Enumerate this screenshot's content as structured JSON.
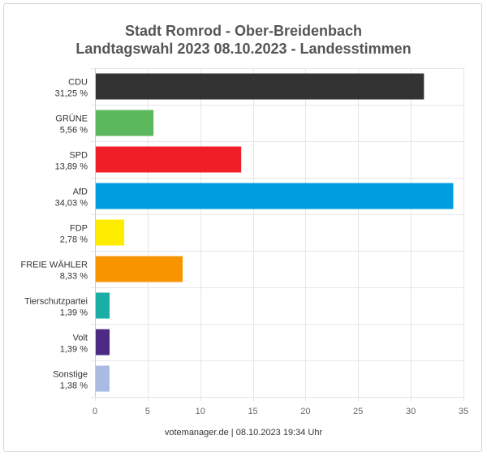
{
  "chart_data": {
    "type": "bar",
    "orientation": "horizontal",
    "title": "Stadt Romrod - Ober-Breidenbach",
    "subtitle": "Landtagswahl 2023 08.10.2023  - Landesstimmen",
    "categories": [
      "CDU",
      "GRÜNE",
      "SPD",
      "AfD",
      "FDP",
      "FREIE WÄHLER",
      "Tierschutzpartei",
      "Volt",
      "Sonstige"
    ],
    "value_labels": [
      "31,25 %",
      "5,56 %",
      "13,89 %",
      "34,03 %",
      "2,78 %",
      "8,33 %",
      "1,39 %",
      "1,39 %",
      "1,38 %"
    ],
    "values": [
      31.25,
      5.56,
      13.89,
      34.03,
      2.78,
      8.33,
      1.39,
      1.39,
      1.38
    ],
    "colors": [
      "#333333",
      "#5cb85c",
      "#ee1f26",
      "#009de0",
      "#ffed00",
      "#f79400",
      "#1aafa6",
      "#4e2a84",
      "#aabbe3"
    ],
    "xlim": [
      0,
      35
    ],
    "xticks": [
      "0",
      "5",
      "10",
      "15",
      "20",
      "25",
      "30",
      "35"
    ],
    "grid": true,
    "xlabel": "",
    "ylabel": "",
    "footer": "votemanager.de | 08.10.2023 19:34 Uhr"
  }
}
